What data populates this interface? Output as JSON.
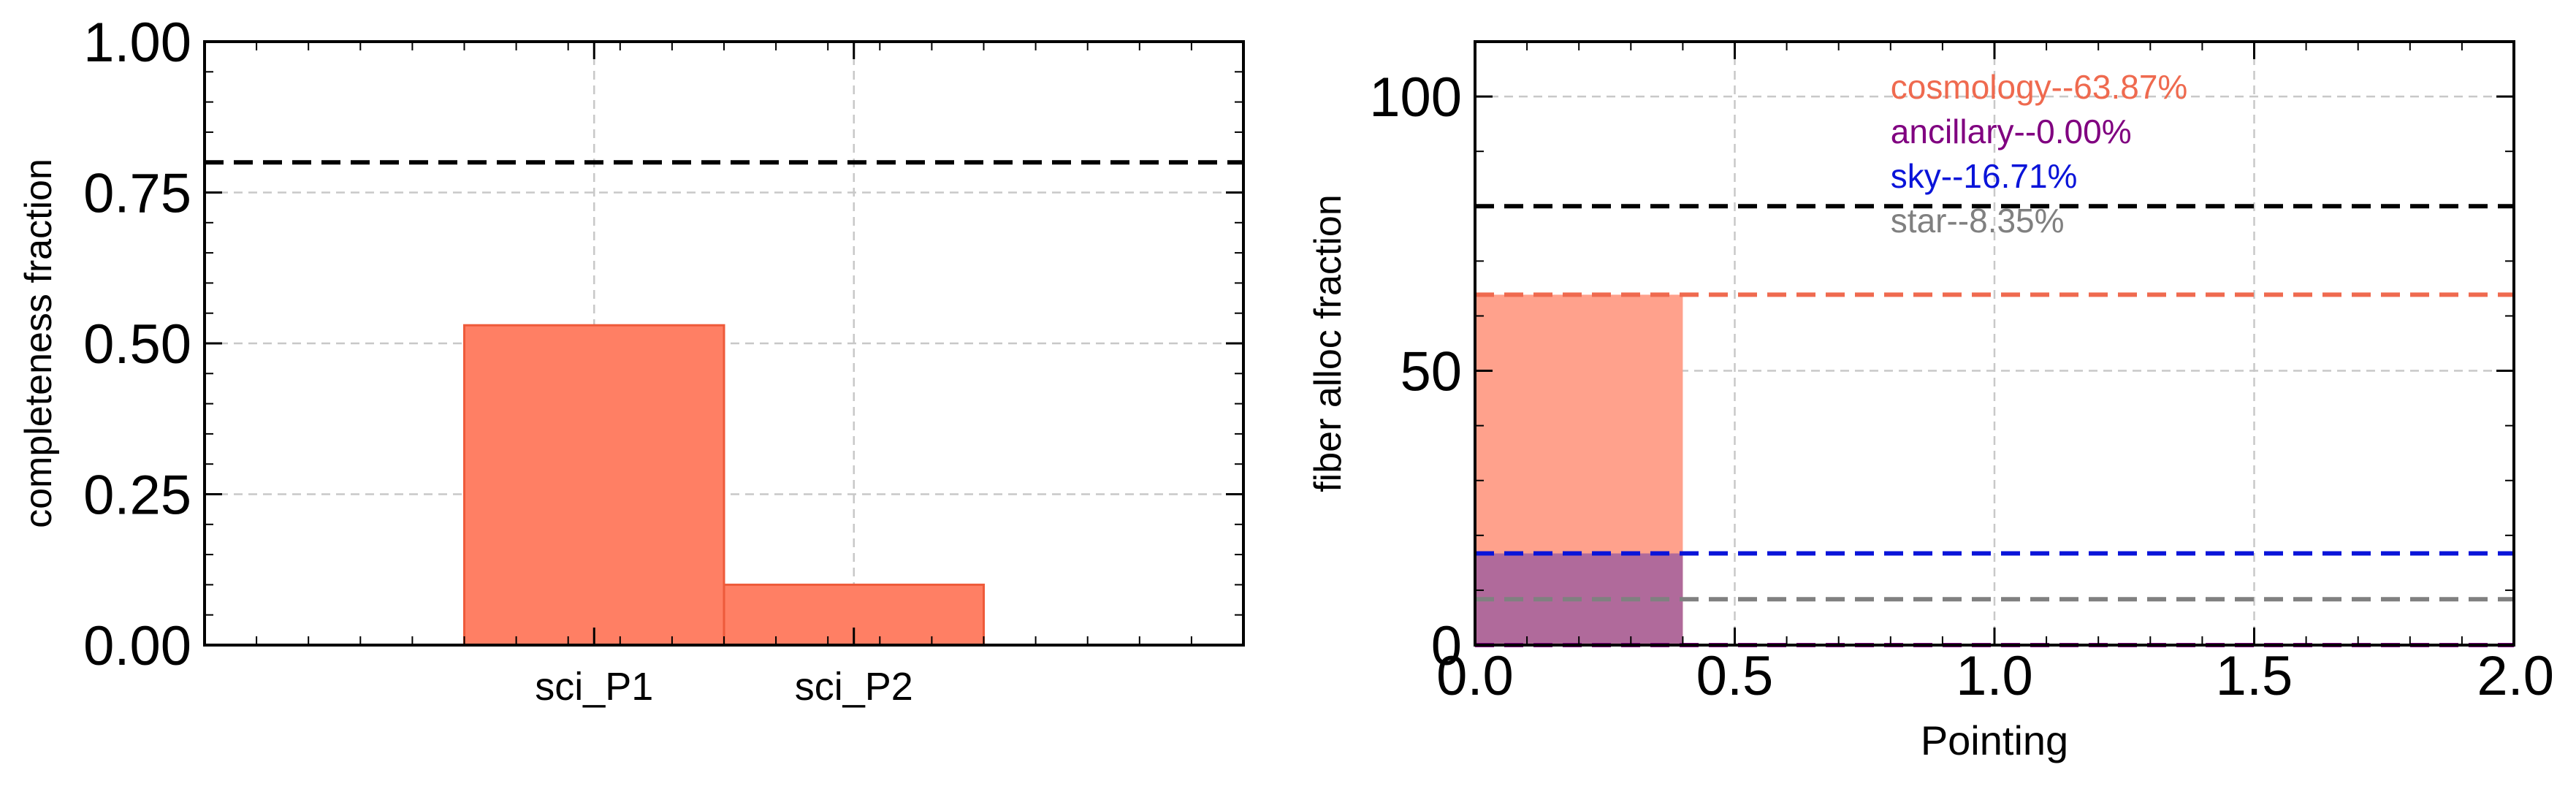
{
  "chart_data": [
    {
      "type": "bar",
      "title": "",
      "xlabel": "",
      "ylabel": "completeness fraction",
      "ylim": [
        0,
        1
      ],
      "xlim": [
        -1.5,
        2.5
      ],
      "bar_centers": [
        0,
        1
      ],
      "bar_width": 1.0,
      "categories": [
        "sci_P1",
        "sci_P2"
      ],
      "values": [
        0.53,
        0.1
      ],
      "yticks": [
        0,
        0.25,
        0.5,
        0.75,
        1.0
      ],
      "ytick_labels": [
        "0.00",
        "0.25",
        "0.50",
        "0.75",
        "1.00"
      ],
      "reference_line": 0.8,
      "bar_color": "#ff7f64",
      "bar_edge_color": "#ee5a3a",
      "grid": true
    },
    {
      "type": "bar",
      "title": "",
      "xlabel": "Pointing",
      "ylabel": "fiber alloc fraction",
      "xlim": [
        0,
        2
      ],
      "ylim": [
        0,
        110
      ],
      "xticks": [
        0,
        0.5,
        1,
        1.5,
        2
      ],
      "xtick_labels": [
        "0.0",
        "0.5",
        "1.0",
        "1.5",
        "2.0"
      ],
      "yticks": [
        0,
        50,
        100
      ],
      "ytick_labels": [
        "0",
        "50",
        "100"
      ],
      "grid": true,
      "target_line": 80,
      "bar_x": [
        0,
        0.4
      ],
      "series": [
        {
          "name": "cosmology",
          "value": 63.87,
          "label": "cosmology--63.87%",
          "color": "#ef6a4f",
          "fill": "#ffa18c"
        },
        {
          "name": "ancillary",
          "value": 0.0,
          "label": "ancillary--0.00%",
          "color": "#800080",
          "fill": "#800080"
        },
        {
          "name": "sky",
          "value": 16.71,
          "label": "sky--16.71%",
          "color": "#0a14d9",
          "fill": "#b06a9b"
        },
        {
          "name": "star",
          "value": 8.35,
          "label": "star--8.35%",
          "color": "#808080",
          "fill": "#b06a9b"
        }
      ]
    }
  ]
}
